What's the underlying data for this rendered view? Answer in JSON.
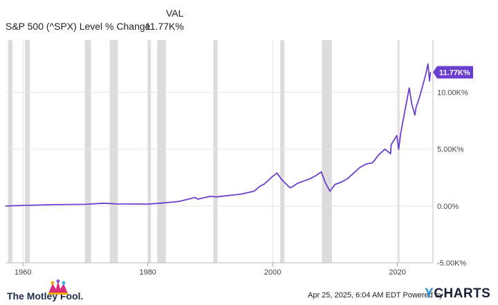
{
  "legend": {
    "header": "VAL",
    "series_name": "S&P 500 (^SPX) Level % Change",
    "series_value": "11.77K%"
  },
  "footer": {
    "brand_left": "The Motley Fool.",
    "timestamp": "Apr 25, 2025, 6:04 AM EDT Powered by",
    "brand_right_y": "Y",
    "brand_right_rest": "CHARTS"
  },
  "colors": {
    "line": "#6a3fd0",
    "recession": "#dcdcdc",
    "grid": "#e3e3e3",
    "badge": "#6a3fd0"
  },
  "chart_data": {
    "type": "line",
    "series": [
      {
        "name": "S&P 500 (^SPX) Level % Change",
        "x": [
          1957.2,
          1960,
          1965,
          1970,
          1973,
          1975,
          1980,
          1982,
          1985,
          1987.6,
          1988,
          1990,
          1991,
          1995,
          1997,
          1998,
          1998.6,
          2000,
          2000.7,
          2001.5,
          2002.8,
          2003.2,
          2004,
          2005,
          2006,
          2007,
          2007.8,
          2008.5,
          2009.2,
          2010,
          2011,
          2012,
          2013,
          2014,
          2015,
          2016,
          2017,
          2018,
          2018.9,
          2019,
          2019.9,
          2020.2,
          2020.5,
          2021,
          2021.9,
          2022.3,
          2022.8,
          2023,
          2023.5,
          2024,
          2024.5,
          2024.9,
          2025.15,
          2025.3
        ],
        "y": [
          0,
          50,
          120,
          150,
          250,
          180,
          170,
          250,
          400,
          750,
          600,
          850,
          800,
          1050,
          1300,
          1750,
          1900,
          2600,
          2900,
          2300,
          1600,
          1700,
          2000,
          2200,
          2400,
          2700,
          3000,
          2000,
          1300,
          1900,
          2100,
          2400,
          2900,
          3400,
          3700,
          3800,
          4500,
          5000,
          4600,
          5400,
          6200,
          5000,
          6300,
          7800,
          10400,
          9000,
          8000,
          8700,
          9500,
          10500,
          11500,
          12500,
          11000,
          11770
        ]
      }
    ],
    "x_ticks": [
      "1960",
      "1980",
      "2000",
      "2020"
    ],
    "x_tick_values": [
      1960,
      1980,
      2000,
      2020
    ],
    "y_ticks": [
      "-5.00K%",
      "0.00%",
      "5.00K%",
      "10.00K%"
    ],
    "y_tick_values": [
      -5000,
      0,
      5000,
      10000
    ],
    "xlim": [
      1957.2,
      2025.7
    ],
    "ylim": [
      -5000,
      14600
    ],
    "last_value_label": "11.77K%",
    "last_value": 11770,
    "recessions": [
      [
        1957.6,
        1958.3
      ],
      [
        1960.3,
        1961.1
      ],
      [
        1969.9,
        1970.9
      ],
      [
        1973.9,
        1975.2
      ],
      [
        1980.0,
        1980.5
      ],
      [
        1981.5,
        1982.9
      ],
      [
        1990.5,
        1991.2
      ],
      [
        2001.2,
        2001.9
      ],
      [
        2007.9,
        2009.5
      ],
      [
        2020.1,
        2020.35
      ]
    ],
    "grid": true,
    "legend_position": "top-left"
  }
}
